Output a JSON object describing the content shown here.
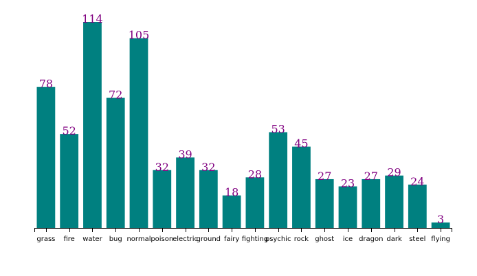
{
  "chart_data": {
    "type": "bar",
    "title": "",
    "xlabel": "",
    "ylabel": "",
    "categories": [
      "grass",
      "fire",
      "water",
      "bug",
      "normal",
      "poison",
      "electric",
      "ground",
      "fairy",
      "fighting",
      "psychic",
      "rock",
      "ghost",
      "ice",
      "dragon",
      "dark",
      "steel",
      "flying"
    ],
    "values": [
      78,
      52,
      114,
      72,
      105,
      32,
      39,
      32,
      18,
      28,
      53,
      45,
      27,
      23,
      27,
      29,
      24,
      3
    ],
    "ylim": [
      0,
      114
    ],
    "grid": false,
    "legend": "none",
    "colors": {
      "bar": "#008080",
      "value_label": "#800080",
      "axis": "#000000"
    }
  }
}
